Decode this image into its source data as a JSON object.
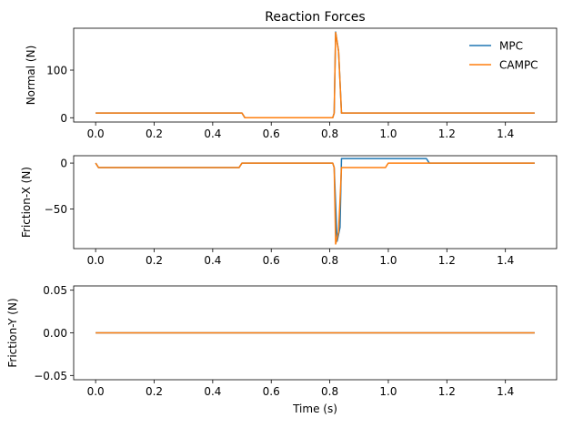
{
  "chart_data": [
    {
      "type": "line",
      "title": "Reaction Forces",
      "xlabel": "",
      "ylabel": "Normal (N)",
      "xlim": [
        -0.075,
        1.575
      ],
      "ylim": [
        -9,
        188
      ],
      "xticks": [
        0.0,
        0.2,
        0.4,
        0.6,
        0.8,
        1.0,
        1.2,
        1.4
      ],
      "xtick_labels": [
        "0.0",
        "0.2",
        "0.4",
        "0.6",
        "0.8",
        "1.0",
        "1.2",
        "1.4"
      ],
      "yticks": [
        0,
        100
      ],
      "ytick_labels": [
        "0",
        "100"
      ],
      "legend": {
        "placement": "top-right",
        "entries": [
          "MPC",
          "CAMPC"
        ]
      },
      "series": [
        {
          "name": "MPC",
          "color": "#1f77b4",
          "x": [
            0.0,
            0.5,
            0.51,
            0.81,
            0.815,
            0.82,
            0.83,
            0.84,
            1.5
          ],
          "y": [
            9.8,
            9.8,
            0.0,
            0.0,
            9.8,
            180,
            140,
            9.8,
            9.8
          ]
        },
        {
          "name": "CAMPC",
          "color": "#ff7f0e",
          "x": [
            0.0,
            0.5,
            0.51,
            0.81,
            0.815,
            0.82,
            0.83,
            0.84,
            1.5
          ],
          "y": [
            9.8,
            9.8,
            0.0,
            0.0,
            9.8,
            179,
            140,
            9.8,
            9.8
          ]
        }
      ]
    },
    {
      "type": "line",
      "title": "",
      "xlabel": "",
      "ylabel": "Friction-X (N)",
      "xlim": [
        -0.075,
        1.575
      ],
      "ylim": [
        -93,
        8
      ],
      "xticks": [
        0.0,
        0.2,
        0.4,
        0.6,
        0.8,
        1.0,
        1.2,
        1.4
      ],
      "xtick_labels": [
        "0.0",
        "0.2",
        "0.4",
        "0.6",
        "0.8",
        "1.0",
        "1.2",
        "1.4"
      ],
      "yticks": [
        -50,
        0
      ],
      "ytick_labels": [
        "−50",
        "0"
      ],
      "series": [
        {
          "name": "MPC",
          "color": "#1f77b4",
          "x": [
            0.0,
            0.01,
            0.49,
            0.5,
            0.81,
            0.815,
            0.825,
            0.835,
            0.84,
            1.13,
            1.14,
            1.5
          ],
          "y": [
            0.0,
            -4.9,
            -4.9,
            0.0,
            0.0,
            -4.9,
            -85,
            -70,
            4.9,
            4.9,
            0.0,
            0.0
          ]
        },
        {
          "name": "CAMPC",
          "color": "#ff7f0e",
          "x": [
            0.0,
            0.01,
            0.49,
            0.5,
            0.81,
            0.815,
            0.82,
            0.83,
            0.84,
            0.99,
            1.0,
            1.5
          ],
          "y": [
            0.0,
            -4.9,
            -4.9,
            0.0,
            0.0,
            -4.9,
            -88,
            -75,
            -4.9,
            -4.9,
            0.0,
            0.0
          ]
        }
      ]
    },
    {
      "type": "line",
      "title": "",
      "xlabel": "Time (s)",
      "ylabel": "Friction-Y (N)",
      "xlim": [
        -0.075,
        1.575
      ],
      "ylim": [
        -0.055,
        0.055
      ],
      "xticks": [
        0.0,
        0.2,
        0.4,
        0.6,
        0.8,
        1.0,
        1.2,
        1.4
      ],
      "xtick_labels": [
        "0.0",
        "0.2",
        "0.4",
        "0.6",
        "0.8",
        "1.0",
        "1.2",
        "1.4"
      ],
      "yticks": [
        -0.05,
        0.0,
        0.05
      ],
      "ytick_labels": [
        "−0.05",
        "0.00",
        "0.05"
      ],
      "series": [
        {
          "name": "MPC",
          "color": "#1f77b4",
          "x": [
            0.0,
            1.5
          ],
          "y": [
            0.0,
            0.0
          ]
        },
        {
          "name": "CAMPC",
          "color": "#ff7f0e",
          "x": [
            0.0,
            1.5
          ],
          "y": [
            0.0,
            0.0
          ]
        }
      ]
    }
  ]
}
